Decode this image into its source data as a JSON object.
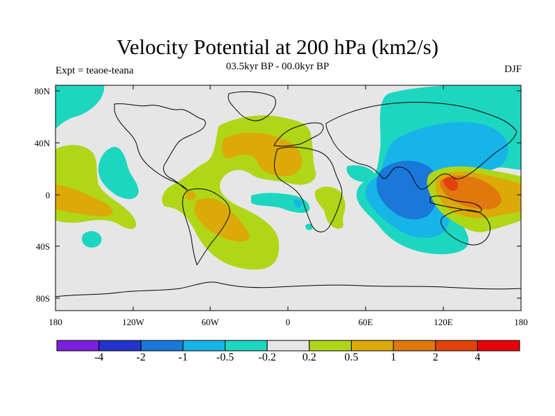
{
  "title": "Velocity Potential at 200 hPa (km2/s)",
  "subtitle": "03.5kyr BP - 00.0kyr BP",
  "left_label": "Expt = teaoe-teana",
  "right_label": "DJF",
  "lat_labels": [
    "80N",
    "40N",
    "0",
    "40S",
    "80S"
  ],
  "lon_labels": [
    "180",
    "120W",
    "60W",
    "0",
    "60E",
    "120E",
    "180"
  ],
  "colorbar": {
    "labels": [
      "-4",
      "-2",
      "-1",
      "-0.5",
      "-0.2",
      "0.2",
      "0.5",
      "1",
      "2",
      "4"
    ],
    "colors": [
      "#7b1fdc",
      "#2433cc",
      "#1a78d8",
      "#17b4e8",
      "#1dd6c0",
      "#e6e6e6",
      "#b0d618",
      "#dcaa08",
      "#e0780e",
      "#e2420c",
      "#e8020a"
    ]
  },
  "colors": {
    "neutral": "#e6e6e6",
    "cyan": "#1dd6c0",
    "light_blue": "#17b4e8",
    "blue": "#1a78d8",
    "yellow_green": "#b0d618",
    "gold": "#dcaa08",
    "orange": "#e0780e",
    "red_orange": "#e2420c"
  }
}
